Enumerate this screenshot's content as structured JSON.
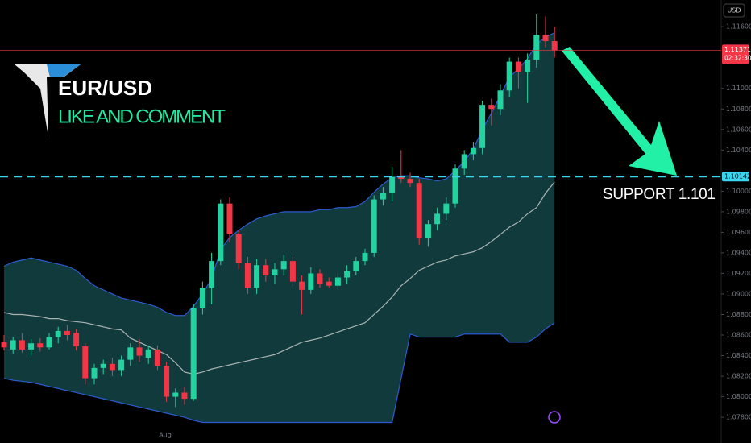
{
  "chart_data": {
    "type": "candlestick",
    "title": "EUR/USD",
    "subtitle": "LIKE AND COMMENT",
    "annotation": "SUPPORT  1.101",
    "currency": "USD",
    "x_label": "Aug",
    "up_color": "#22d3a0",
    "down_color": "#f23645",
    "band_color": "#2d5bd1",
    "band_fill": "#103a3c",
    "middle_color": "#aab3b3",
    "last_price": 1.11371,
    "countdown": "02:32:30",
    "support": 1.10142,
    "ylim": [
      1.0755,
      1.1186
    ],
    "yticks": [
      {
        "value": 1.078,
        "label": "1.07800"
      },
      {
        "value": 1.08,
        "label": "1.08000"
      },
      {
        "value": 1.082,
        "label": "1.08200"
      },
      {
        "value": 1.084,
        "label": "1.08400"
      },
      {
        "value": 1.086,
        "label": "1.08600"
      },
      {
        "value": 1.088,
        "label": "1.08800"
      },
      {
        "value": 1.09,
        "label": "1.09000"
      },
      {
        "value": 1.092,
        "label": "1.09200"
      },
      {
        "value": 1.094,
        "label": "1.09400"
      },
      {
        "value": 1.096,
        "label": "1.09600"
      },
      {
        "value": 1.098,
        "label": "1.09800"
      },
      {
        "value": 1.1,
        "label": "1.10000"
      },
      {
        "value": 1.104,
        "label": "1.10400"
      },
      {
        "value": 1.106,
        "label": "1.10600"
      },
      {
        "value": 1.108,
        "label": "1.10800"
      },
      {
        "value": 1.11,
        "label": "1.11000"
      },
      {
        "value": 1.116,
        "label": "1.11600"
      }
    ],
    "open": [
      1.0853,
      1.0846,
      1.0855,
      1.0846,
      1.0852,
      1.0848,
      1.0858,
      1.0864,
      1.0862,
      1.0849,
      1.0818,
      1.0828,
      1.0832,
      1.0826,
      1.0836,
      1.0848,
      1.0838,
      1.0846,
      1.083,
      1.08,
      1.0804,
      1.0798,
      1.0886,
      1.0906,
      1.0932,
      1.0988,
      1.0958,
      1.093,
      1.0906,
      1.0928,
      1.0918,
      1.0924,
      1.0932,
      1.0912,
      1.0904,
      1.092,
      1.0912,
      1.0908,
      1.0916,
      1.0922,
      1.0932,
      1.094,
      1.0992,
      1.0998,
      1.1014,
      1.1012,
      1.1008,
      1.0954,
      1.0968,
      1.0978,
      1.0988,
      1.1022,
      1.1036,
      1.1042,
      1.1084,
      1.108,
      1.1098,
      1.1126,
      1.1116,
      1.1128,
      1.1152,
      1.1146
    ],
    "high": [
      1.086,
      1.0858,
      1.0862,
      1.0856,
      1.0857,
      1.0862,
      1.0868,
      1.087,
      1.0866,
      1.0852,
      1.0832,
      1.0836,
      1.0838,
      1.084,
      1.0852,
      1.0856,
      1.085,
      1.085,
      1.0834,
      1.0808,
      1.081,
      1.089,
      1.0912,
      1.094,
      1.0992,
      1.0994,
      1.0962,
      1.0936,
      1.0934,
      1.0934,
      1.093,
      1.0938,
      1.0936,
      1.0918,
      1.0926,
      1.0924,
      1.0916,
      1.092,
      1.0928,
      1.0936,
      1.0944,
      1.0996,
      1.1004,
      1.1024,
      1.104,
      1.1018,
      1.1012,
      1.0972,
      1.0984,
      1.0994,
      1.1026,
      1.104,
      1.1048,
      1.1088,
      1.109,
      1.1104,
      1.113,
      1.113,
      1.1134,
      1.1172,
      1.117,
      1.116
    ],
    "low": [
      1.0845,
      1.0842,
      1.0843,
      1.084,
      1.0844,
      1.0846,
      1.0852,
      1.0855,
      1.0845,
      1.0812,
      1.0812,
      1.0822,
      1.082,
      1.082,
      1.083,
      1.0834,
      1.0832,
      1.0826,
      1.0795,
      1.079,
      1.0792,
      1.0796,
      1.088,
      1.089,
      1.0928,
      1.095,
      1.0924,
      1.09,
      1.09,
      1.0912,
      1.091,
      1.0918,
      1.0908,
      1.088,
      1.09,
      1.0906,
      1.0906,
      1.0904,
      1.091,
      1.0918,
      1.0928,
      1.0936,
      1.0986,
      1.099,
      1.1008,
      1.1004,
      1.0948,
      1.0946,
      1.0962,
      1.0972,
      1.0984,
      1.1016,
      1.103,
      1.1036,
      1.1064,
      1.1074,
      1.1092,
      1.11,
      1.1086,
      1.112,
      1.114,
      1.113
    ],
    "close": [
      1.0848,
      1.0855,
      1.0846,
      1.0852,
      1.0848,
      1.0858,
      1.0864,
      1.086,
      1.0849,
      1.0818,
      1.0828,
      1.0832,
      1.0826,
      1.0836,
      1.0848,
      1.084,
      1.0846,
      1.083,
      1.08,
      1.0804,
      1.0798,
      1.0886,
      1.0906,
      1.0932,
      1.0988,
      1.0958,
      1.093,
      1.0906,
      1.0928,
      1.0918,
      1.0924,
      1.0932,
      1.0912,
      1.0904,
      1.092,
      1.091,
      1.0908,
      1.0916,
      1.0922,
      1.0932,
      1.094,
      1.0992,
      1.0998,
      1.1014,
      1.1012,
      1.1008,
      1.0954,
      1.0968,
      1.0978,
      1.0988,
      1.1022,
      1.1036,
      1.1042,
      1.1084,
      1.108,
      1.1098,
      1.1126,
      1.1116,
      1.1128,
      1.1152,
      1.1146,
      1.1137
    ],
    "upper": [
      1.0927,
      1.0931,
      1.0933,
      1.0935,
      1.0933,
      1.0931,
      1.0929,
      1.0927,
      1.0923,
      1.0915,
      1.0908,
      1.0904,
      1.09,
      1.0896,
      1.0894,
      1.0892,
      1.089,
      1.0887,
      1.0882,
      1.0879,
      1.0879,
      1.0888,
      1.09,
      1.0915,
      1.0943,
      1.0955,
      1.0962,
      1.0968,
      1.0973,
      1.0976,
      1.0978,
      1.098,
      1.098,
      1.098,
      1.098,
      1.0982,
      1.0982,
      1.0984,
      1.0984,
      1.0985,
      1.099,
      1.0999,
      1.1007,
      1.1013,
      1.1015,
      1.1015,
      1.1013,
      1.1012,
      1.101,
      1.1012,
      1.102,
      1.1029,
      1.1041,
      1.106,
      1.1076,
      1.1093,
      1.1111,
      1.1119,
      1.1129,
      1.1143,
      1.115,
      1.1154
    ],
    "middle": [
      1.0882,
      1.088,
      1.088,
      1.0879,
      1.0878,
      1.0876,
      1.0876,
      1.0874,
      1.0873,
      1.0872,
      1.087,
      1.0868,
      1.0866,
      1.0865,
      1.0857,
      1.0853,
      1.0849,
      1.0845,
      1.0841,
      1.0833,
      1.0824,
      1.0822,
      1.0824,
      1.0827,
      1.0829,
      1.0831,
      1.0833,
      1.0835,
      1.0837,
      1.0839,
      1.0841,
      1.0845,
      1.0849,
      1.0853,
      1.0855,
      1.0857,
      1.086,
      1.0863,
      1.0866,
      1.0869,
      1.0872,
      1.088,
      1.0888,
      1.0897,
      1.0908,
      1.0915,
      1.0923,
      1.0927,
      1.0931,
      1.0933,
      1.0937,
      1.0939,
      1.0941,
      1.0945,
      1.0951,
      1.0958,
      1.0965,
      1.097,
      1.0978,
      1.0984,
      1.0998,
      1.1009
    ],
    "lower": [
      1.0818,
      1.0816,
      1.0815,
      1.0814,
      1.0812,
      1.081,
      1.0808,
      1.0806,
      1.0804,
      1.0802,
      1.08,
      1.0798,
      1.0796,
      1.0794,
      1.0792,
      1.079,
      1.0788,
      1.0786,
      1.0784,
      1.0782,
      1.078,
      1.0777,
      1.0775,
      1.0775,
      1.0775,
      1.0775,
      1.0775,
      1.0775,
      1.0775,
      1.0775,
      1.0775,
      1.0775,
      1.0775,
      1.0775,
      1.0775,
      1.0775,
      1.0775,
      1.0775,
      1.0775,
      1.0775,
      1.0775,
      1.0775,
      1.0775,
      1.0775,
      1.0818,
      1.0861,
      1.0858,
      1.0858,
      1.0858,
      1.0858,
      1.0858,
      1.0861,
      1.0861,
      1.0861,
      1.0861,
      1.0861,
      1.0853,
      1.0853,
      1.0853,
      1.0858,
      1.0866,
      1.0872
    ]
  }
}
